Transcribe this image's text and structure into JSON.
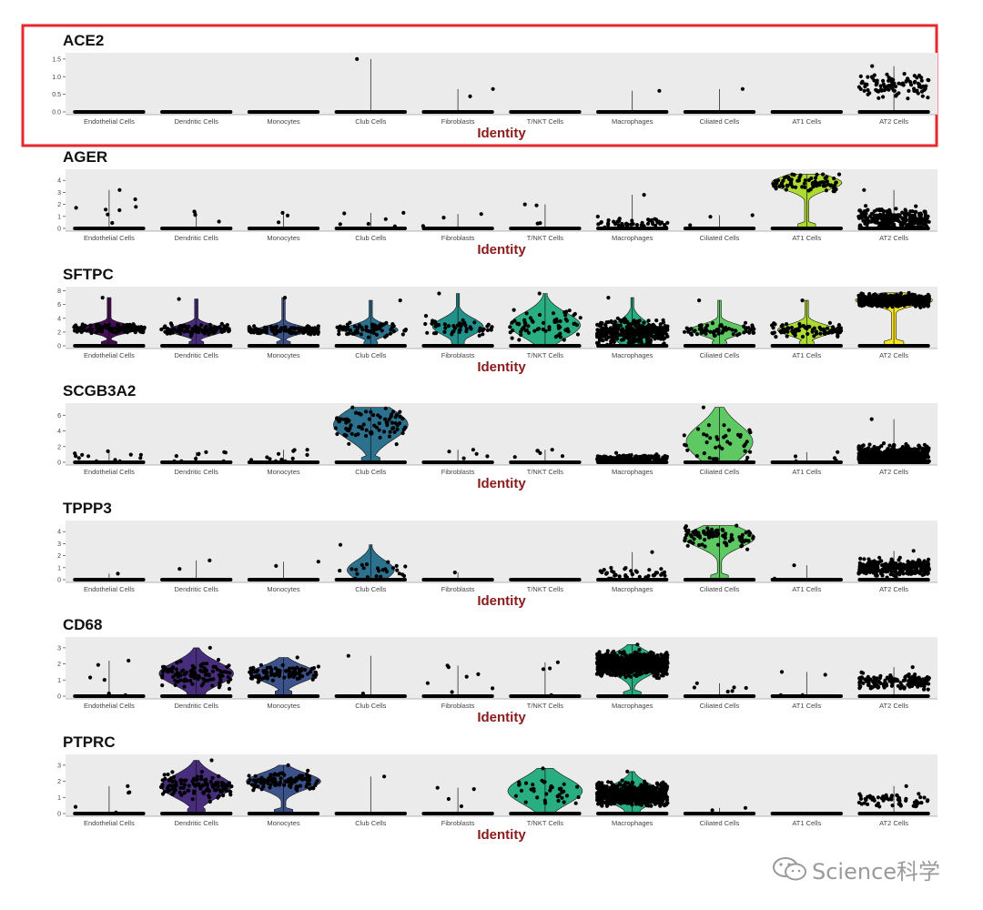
{
  "colors": {
    "panel_bg": "#ebebeb",
    "points": "#000000",
    "axis_title": "#8b1a1a",
    "highlight_border": "#e8262d",
    "palette": {
      "Endothelial Cells": "#450d54",
      "Dendritic Cells": "#472d7b",
      "Monocytes": "#3b528b",
      "Club Cells": "#2c728e",
      "Fibroblasts": "#21918c",
      "T/NKT Cells": "#28ae80",
      "Macrophages": "#27ad81",
      "Ciliated Cells": "#5ec962",
      "AT1 Cells": "#addc30",
      "AT2 Cells": "#fde725"
    }
  },
  "chart_data": {
    "type": "violin",
    "xlabel": "Identity",
    "categories": [
      "Endothelial Cells",
      "Dendritic Cells",
      "Monocytes",
      "Club Cells",
      "Fibroblasts",
      "T/NKT Cells",
      "Macrophages",
      "Ciliated Cells",
      "AT1 Cells",
      "AT2 Cells"
    ],
    "highlighted_gene": "ACE2",
    "panels": [
      {
        "gene": "ACE2",
        "ylim": [
          0,
          1.6
        ],
        "yticks": [
          "0.0",
          "0.5",
          "1.0",
          "1.5"
        ],
        "ytick_values": [
          0,
          0.5,
          1.0,
          1.5
        ],
        "max": [
          0.05,
          0.05,
          0.05,
          1.5,
          0.65,
          0.05,
          0.6,
          0.65,
          0.05,
          1.3
        ],
        "violin_width": [
          0,
          0,
          0,
          0,
          0,
          0,
          0,
          0,
          0,
          0
        ],
        "cloud_median": [
          0,
          0,
          0,
          0,
          0,
          0,
          0,
          0,
          0,
          0.75
        ],
        "cloud_spread": [
          0,
          0,
          0,
          0,
          0,
          0,
          0,
          0,
          0,
          0.3
        ],
        "n_points": [
          0,
          0,
          0,
          1,
          2,
          0,
          1,
          1,
          0,
          100
        ]
      },
      {
        "gene": "AGER",
        "ylim": [
          0,
          4.7
        ],
        "yticks": [
          "0",
          "1",
          "2",
          "3",
          "4"
        ],
        "ytick_values": [
          0,
          1,
          2,
          3,
          4
        ],
        "max": [
          3.2,
          1.4,
          1.3,
          1.3,
          1.2,
          2.0,
          2.8,
          1.1,
          4.5,
          3.2
        ],
        "violin_width": [
          0,
          0,
          0,
          0,
          0,
          0,
          0,
          0,
          0.9,
          0
        ],
        "cloud_median": [
          0,
          0,
          0,
          0,
          0,
          0,
          0.4,
          0,
          3.8,
          0.8
        ],
        "cloud_spread": [
          0,
          0,
          0,
          0,
          0,
          0,
          0.4,
          0,
          0.6,
          0.8
        ],
        "n_points": [
          8,
          3,
          3,
          6,
          3,
          4,
          50,
          3,
          80,
          250
        ]
      },
      {
        "gene": "SFTPC",
        "ylim": [
          0,
          8.2
        ],
        "yticks": [
          "0",
          "2",
          "4",
          "6",
          "8"
        ],
        "ytick_values": [
          0,
          2,
          4,
          6,
          8
        ],
        "max": [
          7.0,
          6.8,
          7.0,
          6.6,
          7.6,
          7.6,
          7.0,
          6.6,
          6.6,
          7.7
        ],
        "violin_width": [
          0.8,
          0.75,
          0.7,
          0.7,
          0.65,
          0.9,
          0.6,
          0.75,
          0.75,
          1.0
        ],
        "cloud_median": [
          2.5,
          2.3,
          2.3,
          2.3,
          2.8,
          3.0,
          2.0,
          2.3,
          2.3,
          6.6
        ],
        "cloud_spread": [
          0.6,
          0.7,
          0.6,
          0.8,
          1.2,
          1.8,
          1.5,
          0.8,
          0.8,
          0.7
        ],
        "n_points": [
          110,
          110,
          120,
          70,
          50,
          70,
          350,
          70,
          90,
          700
        ]
      },
      {
        "gene": "SCGB3A2",
        "ylim": [
          0,
          7.2
        ],
        "yticks": [
          "0",
          "2",
          "4",
          "6"
        ],
        "ytick_values": [
          0,
          2,
          4,
          6
        ],
        "max": [
          1.4,
          1.3,
          1.6,
          7.0,
          1.6,
          1.6,
          1.2,
          7.0,
          1.3,
          5.5
        ],
        "violin_width": [
          0,
          0,
          0,
          0.95,
          0,
          0,
          0,
          0.85,
          0,
          0
        ],
        "cloud_median": [
          0,
          0,
          0,
          4.8,
          0,
          0,
          0.5,
          2.6,
          0,
          1.0
        ],
        "cloud_spread": [
          0,
          0,
          0,
          1.9,
          0,
          0,
          0.4,
          2.2,
          0,
          1.0
        ],
        "n_points": [
          12,
          10,
          12,
          80,
          5,
          6,
          200,
          40,
          5,
          500
        ]
      },
      {
        "gene": "TPPP3",
        "ylim": [
          0,
          4.7
        ],
        "yticks": [
          "0",
          "1",
          "2",
          "3",
          "4"
        ],
        "ytick_values": [
          0,
          1,
          2,
          3,
          4
        ],
        "max": [
          0.5,
          1.6,
          1.5,
          2.9,
          0.6,
          0.05,
          2.3,
          4.5,
          1.2,
          2.4
        ],
        "violin_width": [
          0,
          0,
          0,
          0.6,
          0,
          0,
          0,
          0.9,
          0,
          0
        ],
        "cloud_median": [
          0,
          0,
          0,
          0.8,
          0,
          0,
          0.5,
          3.5,
          0,
          1.0
        ],
        "cloud_spread": [
          0,
          0,
          0,
          0.8,
          0,
          0,
          0.4,
          0.8,
          0,
          0.6
        ],
        "n_points": [
          1,
          2,
          2,
          25,
          1,
          0,
          40,
          90,
          2,
          300
        ]
      },
      {
        "gene": "CD68",
        "ylim": [
          0,
          3.5
        ],
        "yticks": [
          "0",
          "1",
          "2",
          "3"
        ],
        "ytick_values": [
          0,
          1,
          2,
          3
        ],
        "max": [
          2.2,
          3.0,
          2.4,
          2.5,
          1.9,
          2.1,
          3.2,
          0.8,
          1.5,
          1.8
        ],
        "violin_width": [
          0,
          0.95,
          0.85,
          0,
          0,
          0,
          0.9,
          0,
          0,
          0
        ],
        "cloud_median": [
          0,
          1.4,
          1.4,
          0,
          0,
          0,
          2.0,
          0,
          0,
          0.9
        ],
        "cloud_spread": [
          0,
          0.7,
          0.5,
          0,
          0,
          0,
          0.6,
          0,
          0,
          0.4
        ],
        "n_points": [
          6,
          110,
          100,
          2,
          7,
          4,
          900,
          6,
          4,
          150
        ]
      },
      {
        "gene": "PTPRC",
        "ylim": [
          0,
          3.5
        ],
        "yticks": [
          "0",
          "1",
          "2",
          "3"
        ],
        "ytick_values": [
          0,
          1,
          2,
          3
        ],
        "max": [
          1.7,
          3.3,
          3.0,
          2.3,
          1.6,
          2.8,
          2.6,
          0.35,
          0.05,
          1.7
        ],
        "violin_width": [
          0,
          0.9,
          0.95,
          0,
          0,
          0.95,
          0.8,
          0,
          0,
          0
        ],
        "cloud_median": [
          0,
          1.7,
          2.0,
          0,
          0,
          1.4,
          1.2,
          0,
          0,
          0.8
        ],
        "cloud_spread": [
          0,
          0.7,
          0.5,
          0,
          0,
          0.8,
          0.6,
          0,
          0,
          0.4
        ],
        "n_points": [
          5,
          120,
          120,
          1,
          4,
          40,
          700,
          2,
          0,
          60
        ]
      }
    ]
  },
  "watermark": {
    "text": "Science科学",
    "icon": "wechat-icon"
  }
}
